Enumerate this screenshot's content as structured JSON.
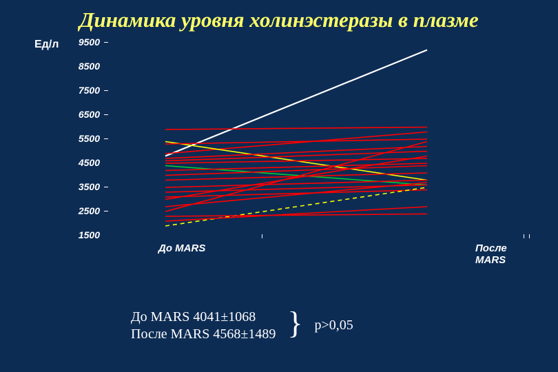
{
  "title": "Динамика уровня холинэстеразы в плазме",
  "ylabel": "Ед/л",
  "chart": {
    "type": "line",
    "background_color": "#0d2c54",
    "title_color": "#ffff66",
    "text_color": "#ffffff",
    "title_fontsize": 31,
    "label_fontsize": 16,
    "tick_fontsize": 14,
    "ylim": [
      1500,
      9500
    ],
    "yticks": [
      9500,
      8500,
      7500,
      6500,
      5500,
      4500,
      3500,
      2500,
      1500
    ],
    "x_categories": [
      "До MARS",
      "После MARS"
    ],
    "series": [
      {
        "color": "#ffffff",
        "width": 2.2,
        "y": [
          4800,
          9200
        ]
      },
      {
        "color": "#ff0000",
        "width": 1.6,
        "y": [
          5900,
          6000
        ]
      },
      {
        "color": "#ff0000",
        "width": 1.6,
        "y": [
          4900,
          5800
        ]
      },
      {
        "color": "#ffff00",
        "width": 1.6,
        "y": [
          5400,
          3800
        ]
      },
      {
        "color": "#ff0000",
        "width": 1.6,
        "y": [
          5300,
          5500
        ]
      },
      {
        "color": "#ff0000",
        "width": 1.6,
        "y": [
          4700,
          5200
        ]
      },
      {
        "color": "#ff0000",
        "width": 1.6,
        "y": [
          4600,
          5000
        ]
      },
      {
        "color": "#ff0000",
        "width": 1.6,
        "y": [
          4500,
          4700
        ]
      },
      {
        "color": "#00cc33",
        "width": 1.6,
        "y": [
          4400,
          3600
        ]
      },
      {
        "color": "#ff0000",
        "width": 1.6,
        "y": [
          4200,
          4500
        ]
      },
      {
        "color": "#ff0000",
        "width": 1.6,
        "y": [
          4000,
          4400
        ]
      },
      {
        "color": "#ff0000",
        "width": 1.6,
        "y": [
          3800,
          4100
        ]
      },
      {
        "color": "#ff0000",
        "width": 1.6,
        "y": [
          3500,
          3800
        ]
      },
      {
        "color": "#ff0000",
        "width": 1.6,
        "y": [
          3300,
          3600
        ]
      },
      {
        "color": "#ff0000",
        "width": 1.6,
        "y": [
          3100,
          3400
        ]
      },
      {
        "color": "#ff0000",
        "width": 1.6,
        "y": [
          3000,
          4800
        ]
      },
      {
        "color": "#ffff00",
        "width": 1.6,
        "y": [
          1900,
          3500
        ],
        "dash": "6,5"
      },
      {
        "color": "#ff0000",
        "width": 1.6,
        "y": [
          2100,
          2700
        ]
      },
      {
        "color": "#ff0000",
        "width": 1.6,
        "y": [
          2300,
          2400
        ]
      },
      {
        "color": "#ff0000",
        "width": 1.6,
        "y": [
          2500,
          5400
        ]
      },
      {
        "color": "#ff0000",
        "width": 1.6,
        "y": [
          2700,
          3700
        ]
      }
    ]
  },
  "footer": {
    "line1": "До MARS 4041±1068",
    "line2": "После MARS 4568±1489",
    "p_text": "p>0,05"
  }
}
